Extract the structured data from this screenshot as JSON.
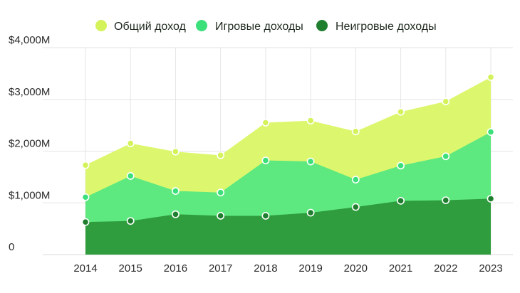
{
  "chart_data": {
    "type": "area",
    "title": "",
    "xlabel": "",
    "ylabel": "",
    "categories": [
      "2014",
      "2015",
      "2016",
      "2017",
      "2018",
      "2019",
      "2020",
      "2021",
      "2022",
      "2023"
    ],
    "ylim": [
      0,
      4000
    ],
    "y_ticks": [
      0,
      1000,
      2000,
      3000,
      4000
    ],
    "y_tick_labels": [
      "0",
      "$1,000M",
      "$2,000M",
      "$3,000M",
      "$4,000M"
    ],
    "grid": "vertical-and-horizontal",
    "legend_position": "top",
    "series": [
      {
        "name": "Общий доход",
        "color": "#dcf76d",
        "marker_color": "#d4f25a",
        "values": [
          1730,
          2150,
          1990,
          1920,
          2550,
          2590,
          2380,
          2760,
          2960,
          3430
        ]
      },
      {
        "name": "Игровые доходы",
        "color": "#5de97f",
        "marker_color": "#3be07a",
        "values": [
          1110,
          1520,
          1230,
          1200,
          1820,
          1800,
          1450,
          1720,
          1900,
          2370
        ]
      },
      {
        "name": "Неигровые доходы",
        "color": "#2f9c3d",
        "marker_color": "#1f7f2e",
        "values": [
          630,
          650,
          780,
          750,
          750,
          810,
          920,
          1040,
          1050,
          1080
        ]
      }
    ]
  }
}
